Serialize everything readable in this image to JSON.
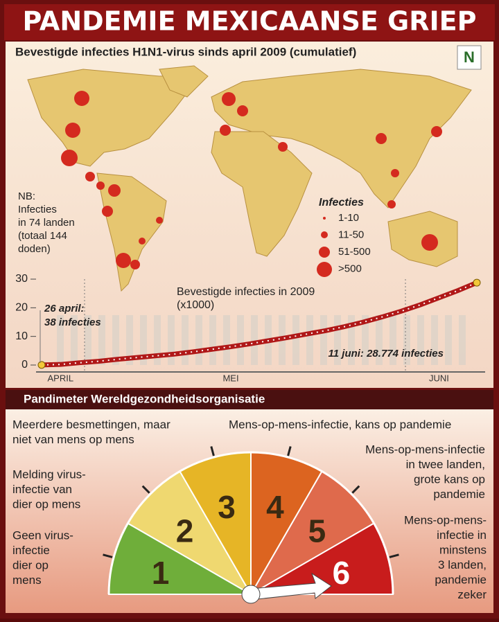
{
  "header": {
    "title": "PANDEMIE MEXICAANSE GRIEP"
  },
  "map": {
    "title": "Bevestigde infecties H1N1-virus sinds april 2009 (cumulatief)",
    "logo": "N",
    "note": [
      "NB:",
      "Infecties",
      "in 74 landen",
      "(totaal 144",
      "doden)"
    ],
    "legend": {
      "title": "Infecties",
      "items": [
        "1-10",
        "11-50",
        "51-500",
        ">500"
      ]
    }
  },
  "chart_data": {
    "type": "line",
    "title": "Bevestigde infecties in 2009",
    "subtitle": "(x1000)",
    "categories": [
      null,
      "APRIL",
      null,
      null,
      null,
      null,
      null,
      null,
      null,
      null,
      "MEI",
      null,
      null,
      null,
      null,
      null,
      null,
      null,
      null,
      null,
      null,
      "JUNI",
      null,
      null
    ],
    "values": [
      0.038,
      0.2,
      0.8,
      1.3,
      2.0,
      2.6,
      3.2,
      3.8,
      4.6,
      5.5,
      6.4,
      7.4,
      8.5,
      9.6,
      10.8,
      12.0,
      13.4,
      15.0,
      16.8,
      18.8,
      21.0,
      23.5,
      26.0,
      28.774
    ],
    "color": "#b01818",
    "ylim": [
      0,
      30
    ],
    "yticks": [
      0,
      10,
      20,
      30
    ],
    "annotations": [
      [
        "26 april:",
        "38 infecties"
      ],
      [
        "11 juni: 28.774 infecties"
      ]
    ]
  },
  "pandimeter": {
    "title": "Pandimeter Wereldgezondheidsorganisatie",
    "phases": [
      {
        "level": 1,
        "color": "#6fae3a",
        "text": [
          "Geen virus-",
          "infectie",
          "dier op",
          "mens"
        ]
      },
      {
        "level": 2,
        "color": "#efd870",
        "text": [
          "Melding virus-",
          "infectie van",
          "dier op mens"
        ]
      },
      {
        "level": 3,
        "color": "#e6b526",
        "text": [
          "Meerdere besmettingen, maar",
          "niet van mens op mens"
        ]
      },
      {
        "level": 4,
        "color": "#dc6420",
        "text": [
          "Mens-op-mens-infectie, kans op pandemie"
        ]
      },
      {
        "level": 5,
        "color": "#df6a4c",
        "text": [
          "Mens-op-mens-infectie",
          "in twee landen,",
          "grote kans op",
          "pandemie"
        ]
      },
      {
        "level": 6,
        "color": "#c81c1c",
        "text": [
          "Mens-op-mens-",
          "infectie in",
          "minstens",
          "3 landen,",
          "pandemie",
          "zeker"
        ]
      }
    ]
  }
}
